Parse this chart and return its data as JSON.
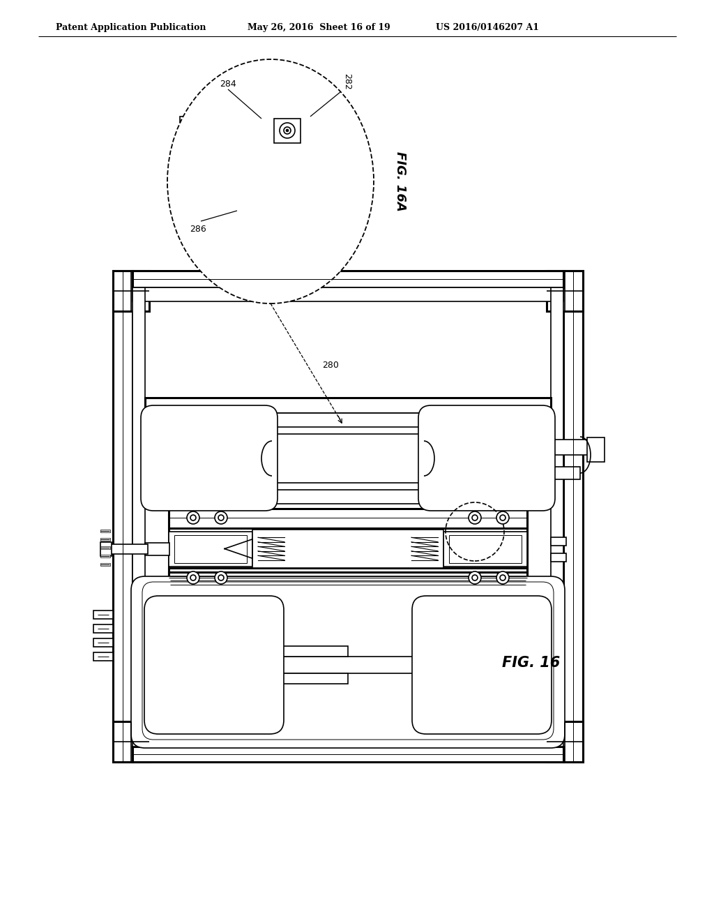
{
  "background_color": "#ffffff",
  "header_left": "Patent Application Publication",
  "header_center": "May 26, 2016  Sheet 16 of 19",
  "header_right": "US 2016/0146207 A1",
  "fig_label": "FIG. 16",
  "fig_inset_label": "FIG. 16A",
  "ref_280": "280",
  "ref_282": "282",
  "ref_284": "284",
  "ref_286": "286",
  "line_color": "#000000",
  "lw": 1.2,
  "lw_thick": 2.2,
  "lw_thin": 0.7
}
